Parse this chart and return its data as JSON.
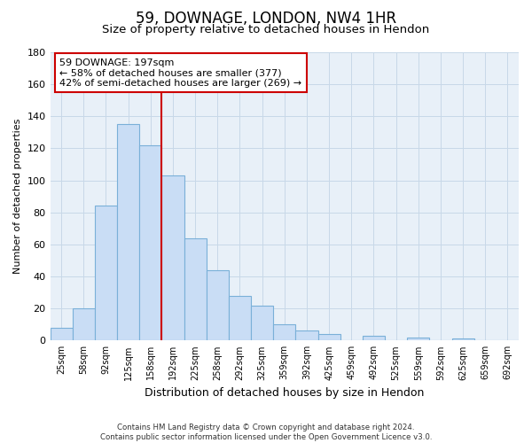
{
  "title": "59, DOWNAGE, LONDON, NW4 1HR",
  "subtitle": "Size of property relative to detached houses in Hendon",
  "xlabel": "Distribution of detached houses by size in Hendon",
  "ylabel": "Number of detached properties",
  "bin_labels": [
    "25sqm",
    "58sqm",
    "92sqm",
    "125sqm",
    "158sqm",
    "192sqm",
    "225sqm",
    "258sqm",
    "292sqm",
    "325sqm",
    "359sqm",
    "392sqm",
    "425sqm",
    "459sqm",
    "492sqm",
    "525sqm",
    "559sqm",
    "592sqm",
    "625sqm",
    "659sqm",
    "692sqm"
  ],
  "bar_values": [
    8,
    20,
    84,
    135,
    122,
    103,
    64,
    44,
    28,
    22,
    10,
    6,
    4,
    0,
    3,
    0,
    2,
    0,
    1,
    0,
    0
  ],
  "bar_color": "#c9ddf5",
  "bar_edge_color": "#7ab0d8",
  "vline_color": "#cc0000",
  "ylim": [
    0,
    180
  ],
  "yticks": [
    0,
    20,
    40,
    60,
    80,
    100,
    120,
    140,
    160,
    180
  ],
  "annotation_title": "59 DOWNAGE: 197sqm",
  "annotation_line1": "← 58% of detached houses are smaller (377)",
  "annotation_line2": "42% of semi-detached houses are larger (269) →",
  "annotation_box_color": "#ffffff",
  "annotation_box_edge": "#cc0000",
  "footer_line1": "Contains HM Land Registry data © Crown copyright and database right 2024.",
  "footer_line2": "Contains public sector information licensed under the Open Government Licence v3.0.",
  "background_color": "#ffffff",
  "grid_color": "#c8d8e8"
}
